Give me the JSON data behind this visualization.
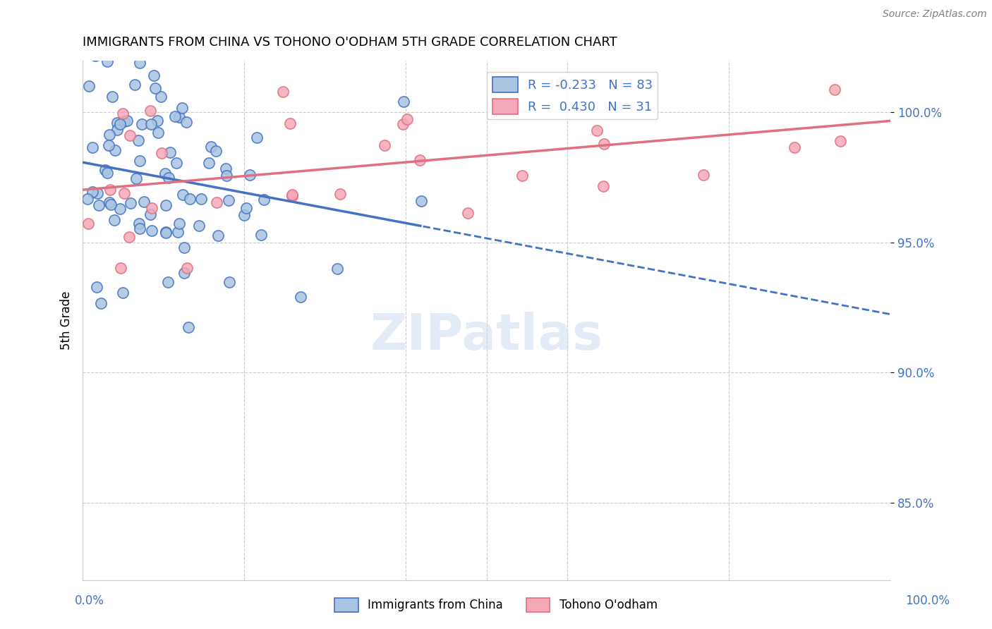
{
  "title": "IMMIGRANTS FROM CHINA VS TOHONO O'ODHAM 5TH GRADE CORRELATION CHART",
  "source": "Source: ZipAtlas.com",
  "ylabel": "5th Grade",
  "xlim": [
    0.0,
    1.0
  ],
  "ylim": [
    0.82,
    1.02
  ],
  "blue_R": -0.233,
  "blue_N": 83,
  "pink_R": 0.43,
  "pink_N": 31,
  "blue_color": "#a8c4e0",
  "pink_color": "#f4a8b8",
  "blue_line_color": "#4472c4",
  "pink_line_color": "#e07080",
  "watermark": "ZIPatlas",
  "ytick_values": [
    0.85,
    0.9,
    0.95,
    1.0
  ],
  "ytick_labels": [
    "85.0%",
    "90.0%",
    "95.0%",
    "100.0%"
  ]
}
